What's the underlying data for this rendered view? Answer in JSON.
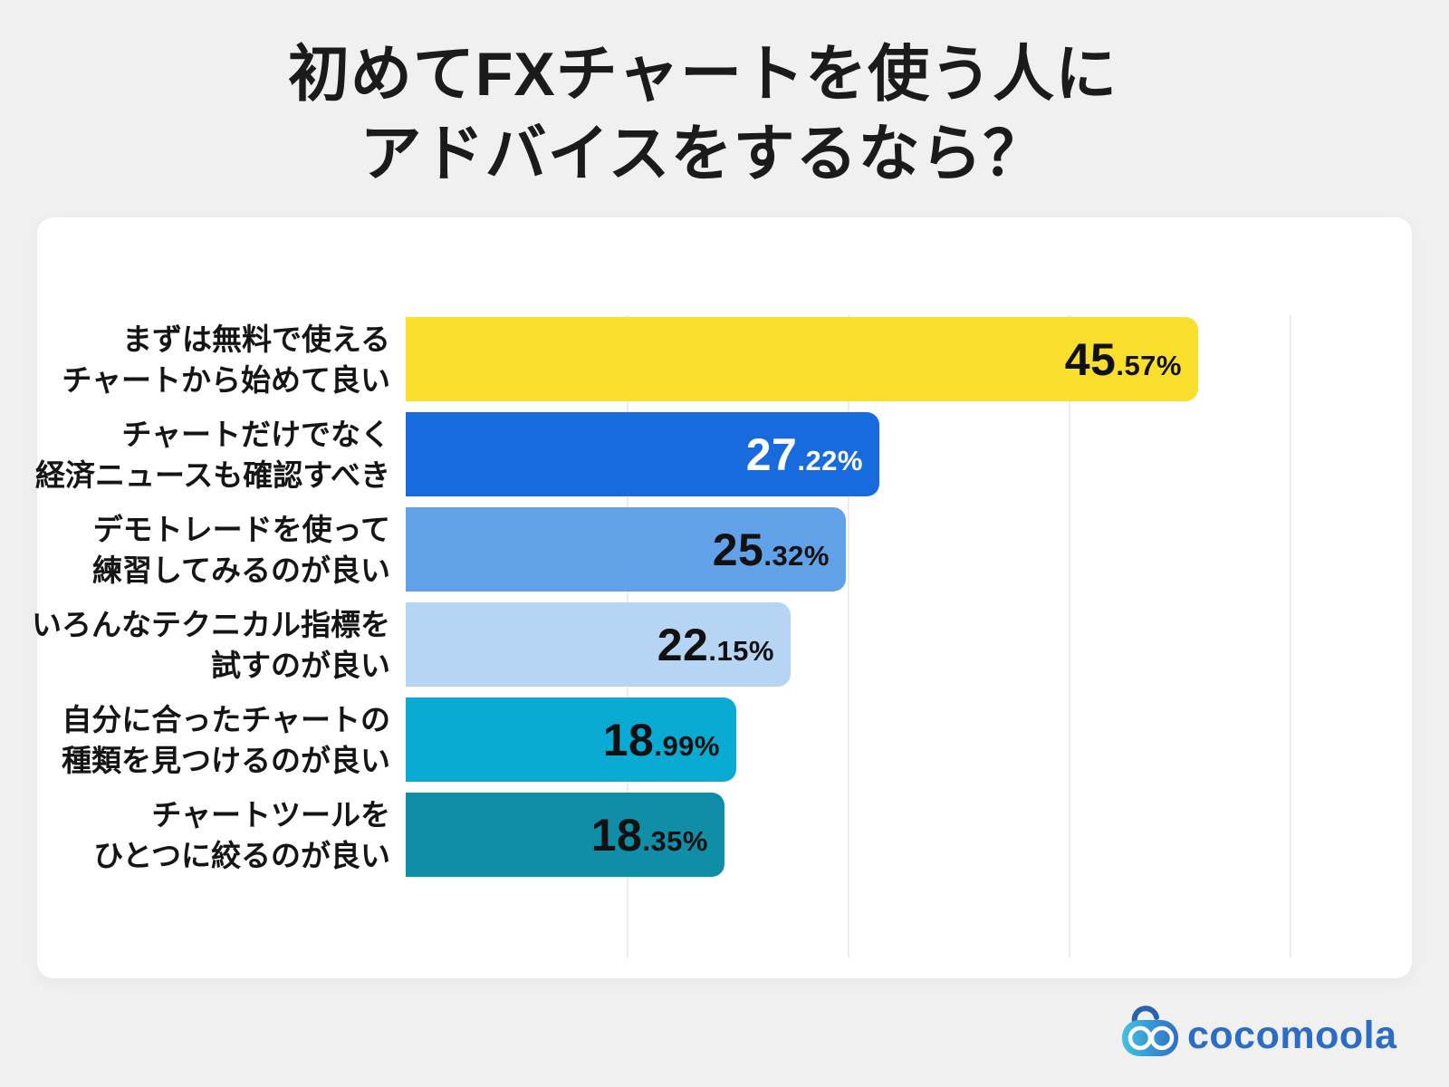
{
  "title": {
    "lines": [
      "初めてFXチャートを使う人に",
      "アドバイスをするなら？"
    ]
  },
  "chart_data": {
    "type": "bar",
    "orientation": "horizontal",
    "title": "初めてFXチャートを使う人にアドバイスをするなら？",
    "value_unit": "%",
    "xlim": [
      0,
      50
    ],
    "grid": true,
    "grid_color": "#ECECEC",
    "legend": false,
    "categories": [
      "まずは無料で使えるチャートから始めて良い",
      "チャートだけでなく経済ニュースも確認すべき",
      "デモトレードを使って練習してみるのが良い",
      "いろんなテクニカル指標を試すのが良い",
      "自分に合ったチャートの種類を見つけるのが良い",
      "チャートツールをひとつに絞るのが良い"
    ],
    "category_lines": [
      [
        "まずは無料で使える",
        "チャートから始めて良い"
      ],
      [
        "チャートだけでなく",
        "経済ニュースも確認すべき"
      ],
      [
        "デモトレードを使って",
        "練習してみるのが良い"
      ],
      [
        "いろんなテクニカル指標を",
        "試すのが良い"
      ],
      [
        "自分に合ったチャートの",
        "種類を見つけるのが良い"
      ],
      [
        "チャートツールを",
        "ひとつに絞るのが良い"
      ]
    ],
    "values": [
      45.57,
      27.22,
      25.32,
      22.15,
      18.99,
      18.35
    ],
    "bar_colors": [
      "#F9DF2B",
      "#176BDD",
      "#60A1E8",
      "#B6D4F4",
      "#09ABD2",
      "#108DA7"
    ],
    "value_label_colors": [
      "#111111",
      "#FFFFFF",
      "#111111",
      "#111111",
      "#111111",
      "#111111"
    ]
  },
  "brand": {
    "name": "cocomoola",
    "color": "#2B6DC6",
    "icon": "cocomoola-goggles-icon",
    "icon_gradient": [
      "#41C2E2",
      "#2F6EC6"
    ],
    "icon_handle_color": "#2B5FB0"
  }
}
